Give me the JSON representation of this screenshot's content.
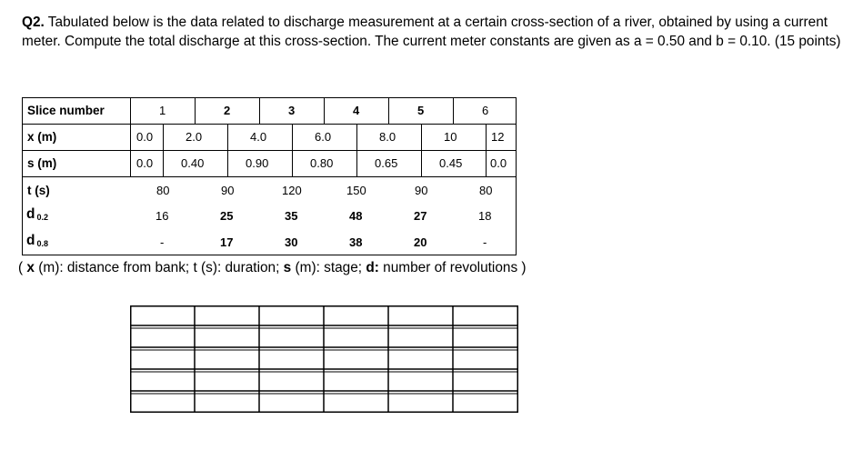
{
  "question": {
    "number": "Q2.",
    "text": " Tabulated below is the data related to discharge measurement at a certain cross-section of a river, obtained by using a current meter. Compute the total discharge at this cross-section. The current meter constants are given as a = 0.50 and b = 0.10. (15 points)"
  },
  "table": {
    "slice_label": "Slice number",
    "slices": [
      "1",
      "2",
      "3",
      "4",
      "5",
      "6"
    ],
    "x_label": "x (m)",
    "x_values": [
      "0.0",
      "2.0",
      "4.0",
      "6.0",
      "8.0",
      "10",
      "12"
    ],
    "s_label": "s (m)",
    "s_values": [
      "0.0",
      "0.40",
      "0.90",
      "0.80",
      "0.65",
      "0.45",
      "0.0"
    ],
    "t_label": "t (s)",
    "t_values": [
      "80",
      "90",
      "120",
      "150",
      "90",
      "80"
    ],
    "d02_label": "d",
    "d02_sub": "0.2",
    "d02_values": [
      "16",
      "25",
      "35",
      "48",
      "27",
      "18"
    ],
    "d08_label": "d",
    "d08_sub": "0.8",
    "d08_values": [
      "-",
      "17",
      "30",
      "38",
      "20",
      "-"
    ]
  },
  "legend": {
    "open": "( ",
    "x_key": "x",
    "x_desc": " (m): distance from bank;  t (s): duration; ",
    "s_key": "s",
    "s_desc": " (m): stage; ",
    "d_key": "d:",
    "d_desc": " number of revolutions )"
  }
}
